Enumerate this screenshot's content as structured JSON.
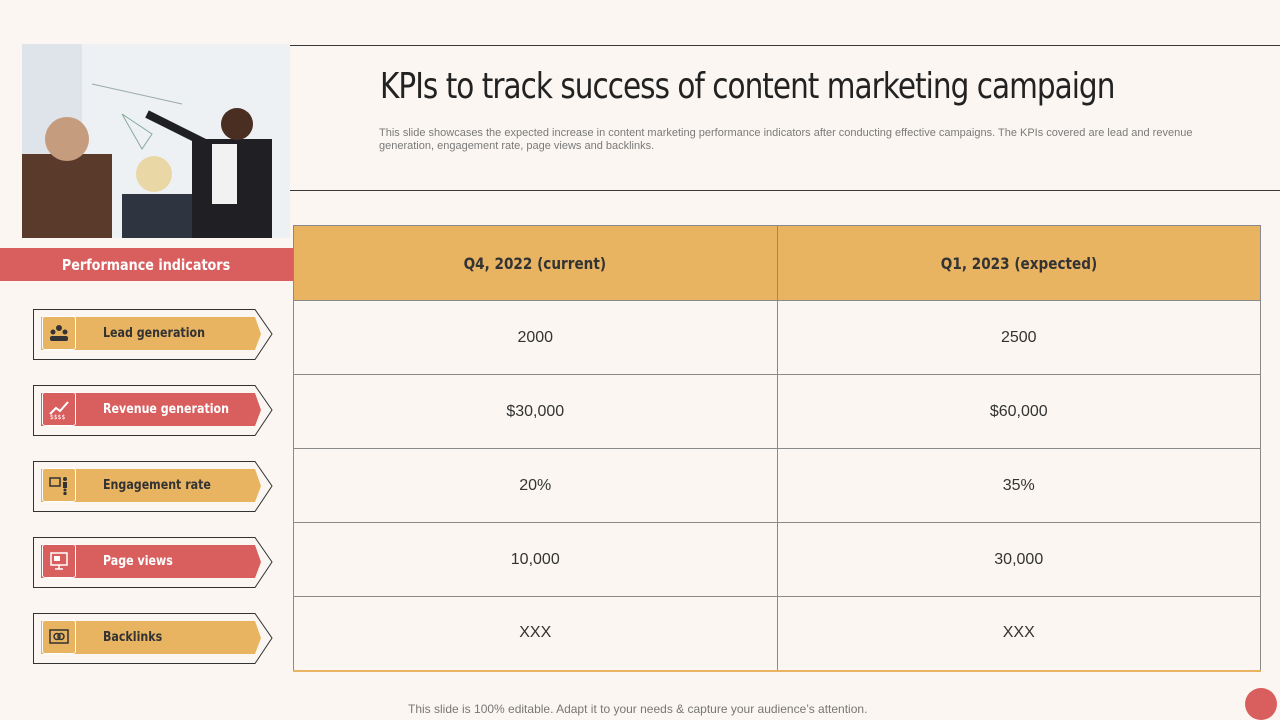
{
  "header": {
    "title": "KPIs to track success of content marketing campaign",
    "subtitle": "This slide showcases the expected increase in content marketing performance indicators after conducting effective campaigns. The KPIs covered are lead and revenue generation, engagement rate, page views and backlinks."
  },
  "sidebar": {
    "banner": "Performance indicators",
    "items": [
      {
        "label": "Lead generation",
        "icon": "users-icon",
        "color": "#e8b462"
      },
      {
        "label": "Revenue generation",
        "icon": "growth-chart-icon",
        "color": "#d95f5f"
      },
      {
        "label": "Engagement rate",
        "icon": "presentation-icon",
        "color": "#e8b462"
      },
      {
        "label": "Page views",
        "icon": "monitor-icon",
        "color": "#d95f5f"
      },
      {
        "label": "Backlinks",
        "icon": "link-icon",
        "color": "#e8b462"
      }
    ]
  },
  "table": {
    "headers": [
      "Q4, 2022 (current)",
      "Q1, 2023 (expected)"
    ],
    "rows": [
      [
        "2000",
        "2500"
      ],
      [
        "$30,000",
        "$60,000"
      ],
      [
        "20%",
        "35%"
      ],
      [
        "10,000",
        "30,000"
      ],
      [
        "XXX",
        "XXX"
      ]
    ]
  },
  "footer": {
    "note": "This slide is 100% editable. Adapt it to your needs & capture your audience’s attention."
  },
  "colors": {
    "accent_red": "#d95f5f",
    "accent_gold": "#e8b462",
    "background": "#fbf6f1"
  }
}
